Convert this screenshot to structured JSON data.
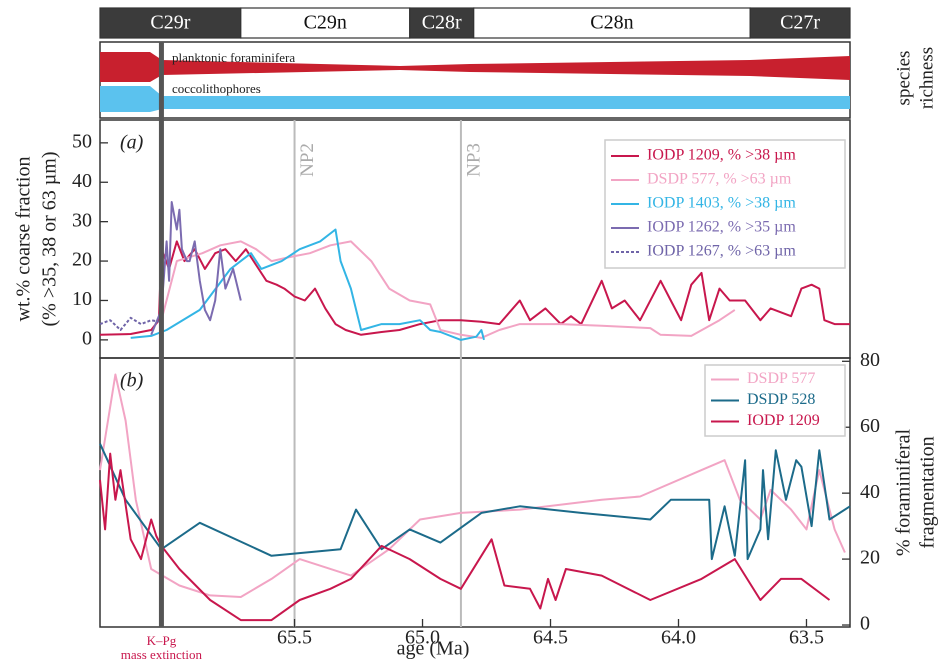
{
  "magnetochrons": [
    {
      "label": "C29r",
      "start": 66.26,
      "end": 65.71
    },
    {
      "label": "C29n",
      "start": 65.71,
      "end": 65.05
    },
    {
      "label": "C28r",
      "start": 65.05,
      "end": 64.8
    },
    {
      "label": "C28n",
      "start": 64.8,
      "end": 63.72
    },
    {
      "label": "C27r",
      "start": 63.72,
      "end": 63.33
    }
  ],
  "species_richness": {
    "label": [
      "species",
      "richness"
    ],
    "groups": [
      "planktonic foraminifera",
      "coccolithophores"
    ]
  },
  "chart_data": [
    {
      "type": "line",
      "panel_label": "(a)",
      "ylabel": [
        "wt.% coarse fraction",
        "(% >35, 38 or 63 µm)"
      ],
      "xlim": [
        66.26,
        63.33
      ],
      "ylim": [
        -4.6,
        55.8
      ],
      "yticks": [
        0,
        10,
        20,
        30,
        40,
        50
      ],
      "legend": "upper right",
      "annotations": [
        {
          "text": "NP2",
          "x": 65.5
        },
        {
          "text": "NP3",
          "x": 64.85
        }
      ],
      "series": [
        {
          "name": "IODP 1209, % >38 µm",
          "color": "#c8174d",
          "x": [
            66.26,
            66.14,
            66.06,
            66.03,
            66.02,
            65.99,
            65.96,
            65.93,
            65.89,
            65.85,
            65.81,
            65.77,
            65.73,
            65.69,
            65.65,
            65.61,
            65.57,
            65.54,
            65.5,
            65.46,
            65.42,
            65.38,
            65.34,
            65.3,
            65.24,
            65.16,
            65.09,
            65.01,
            64.93,
            64.85,
            64.77,
            64.7,
            64.62,
            64.58,
            64.52,
            64.46,
            64.42,
            64.38,
            64.3,
            64.26,
            64.21,
            64.15,
            64.07,
            64.03,
            63.99,
            63.95,
            63.91,
            63.88,
            63.84,
            63.8,
            63.74,
            63.68,
            63.64,
            63.56,
            63.52,
            63.48,
            63.45,
            63.43,
            63.39,
            63.33
          ],
          "values": [
            1.3,
            1.5,
            2.5,
            5,
            23,
            18,
            25,
            20,
            23,
            18,
            22,
            23,
            20,
            23,
            19,
            15,
            14,
            13,
            11,
            10,
            13,
            8,
            4,
            2.5,
            1.3,
            2,
            2.5,
            4,
            5,
            5,
            4.6,
            4,
            10,
            5,
            8,
            4,
            6,
            4,
            15,
            8,
            10,
            5,
            15,
            10,
            5,
            14,
            17,
            5,
            13,
            10,
            10,
            5,
            8,
            6,
            13,
            14,
            13,
            5,
            4,
            4
          ]
        },
        {
          "name": "DSDP 577, % >63 µm",
          "color": "#f2a4c4",
          "x": [
            66.02,
            65.96,
            65.86,
            65.79,
            65.71,
            65.65,
            65.59,
            65.52,
            65.44,
            65.36,
            65.28,
            65.2,
            65.13,
            65.05,
            64.97,
            64.93,
            64.85,
            64.77,
            64.7,
            64.62,
            64.46,
            64.3,
            64.11,
            64.07,
            63.95,
            63.84,
            63.78
          ],
          "values": [
            5,
            20,
            22,
            24,
            25,
            23,
            20,
            21,
            22,
            24,
            25,
            20,
            13,
            10,
            9,
            2.5,
            1.3,
            0.5,
            2.5,
            4,
            4,
            3.6,
            3,
            1.3,
            1,
            5,
            7.6
          ]
        },
        {
          "name": "IODP 1403, % >38 µm",
          "color": "#33b5e5",
          "x": [
            66.14,
            66.06,
            66.0,
            65.87,
            65.75,
            65.67,
            65.63,
            65.55,
            65.48,
            65.4,
            65.34,
            65.32,
            65.28,
            65.24,
            65.16,
            65.09,
            65.01,
            64.97,
            64.93,
            64.85,
            64.79,
            64.77,
            64.76
          ],
          "values": [
            0.5,
            1,
            2.5,
            7.6,
            18,
            22,
            18,
            20,
            23,
            25,
            28,
            20,
            13,
            2.5,
            4,
            4,
            5,
            2.5,
            2,
            0,
            0.8,
            2.5,
            0
          ]
        },
        {
          "name": "IODP 1262, % >35 µm",
          "color": "#7b6bb0",
          "x": [
            66.06,
            66.02,
            66.0,
            65.99,
            65.98,
            65.96,
            65.95,
            65.94,
            65.92,
            65.91,
            65.89,
            65.87,
            65.85,
            65.83,
            65.81,
            65.79,
            65.77,
            65.74,
            65.71
          ],
          "values": [
            1.3,
            7.6,
            25,
            15,
            35,
            28,
            33,
            23,
            20,
            20,
            25,
            15,
            7.6,
            5,
            10,
            23,
            13,
            18,
            10
          ]
        },
        {
          "name": "IODP 1267, % >63 µm",
          "color": "#6f64a8",
          "style": "dashed",
          "x": [
            66.26,
            66.22,
            66.18,
            66.14,
            66.1,
            66.06,
            66.03
          ],
          "values": [
            4,
            5,
            2.5,
            5.6,
            4,
            5,
            4.6
          ]
        }
      ]
    },
    {
      "type": "line",
      "panel_label": "(b)",
      "xlabel": "age (Ma)",
      "y2label": [
        "% foraminiferal",
        "fragmentation"
      ],
      "xlim": [
        66.26,
        63.33
      ],
      "xticks": [
        65.5,
        {
          "value": 65,
          "label": "65.0"
        },
        64.5,
        {
          "value": 64,
          "label": "64.0"
        },
        63.5
      ],
      "y2lim": [
        -0.6,
        81
      ],
      "y2ticks": [
        0,
        20,
        40,
        60,
        80
      ],
      "legend": "upper right",
      "annotations": [
        {
          "text": [
            "K–Pg",
            "mass extinction"
          ],
          "x": 66.02
        }
      ],
      "series": [
        {
          "name": "DSDP 577",
          "color": "#f2a4c4",
          "axis": "y2",
          "x": [
            66.26,
            66.2,
            66.16,
            66.12,
            66.06,
            65.95,
            65.83,
            65.71,
            65.59,
            65.48,
            65.28,
            65.13,
            65.01,
            64.85,
            64.62,
            64.3,
            64.15,
            63.91,
            63.82,
            63.76,
            63.68,
            63.64,
            63.56,
            63.5,
            63.45,
            63.39,
            63.35
          ],
          "values": [
            47,
            76,
            62,
            38,
            17,
            12,
            9,
            8.5,
            14,
            20,
            15,
            23,
            32,
            34,
            35,
            38,
            39,
            47,
            50,
            38,
            32,
            41,
            35,
            29,
            47,
            29,
            22
          ]
        },
        {
          "name": "DSDP 528",
          "color": "#1c6b8a",
          "axis": "y2",
          "x": [
            66.26,
            66.16,
            66.02,
            65.87,
            65.59,
            65.32,
            65.26,
            65.16,
            65.05,
            64.93,
            64.77,
            64.62,
            64.38,
            64.11,
            64.03,
            63.88,
            63.87,
            63.82,
            63.78,
            63.74,
            63.73,
            63.68,
            63.67,
            63.65,
            63.62,
            63.58,
            63.54,
            63.52,
            63.48,
            63.45,
            63.41,
            63.33
          ],
          "values": [
            55,
            38,
            23,
            31,
            21,
            23,
            35,
            23,
            29,
            25,
            34,
            36,
            34,
            32,
            38,
            38,
            20,
            36,
            21,
            50,
            20,
            29,
            47,
            26,
            53,
            38,
            50,
            48,
            30,
            53,
            32,
            36
          ]
        },
        {
          "name": "IODP 1209",
          "color": "#c8174d",
          "axis": "y2",
          "x": [
            66.26,
            66.24,
            66.22,
            66.2,
            66.18,
            66.14,
            66.1,
            66.06,
            66.04,
            66.02,
            65.95,
            65.83,
            65.71,
            65.59,
            65.48,
            65.36,
            65.28,
            65.16,
            65.05,
            64.93,
            64.85,
            64.73,
            64.68,
            64.58,
            64.54,
            64.51,
            64.48,
            64.44,
            64.3,
            64.11,
            63.91,
            63.78,
            63.68,
            63.6,
            63.52,
            63.41
          ],
          "values": [
            44,
            29,
            52,
            38,
            47,
            26,
            20,
            32,
            27,
            24,
            17,
            7.6,
            1.5,
            1.5,
            7.6,
            11,
            14,
            24,
            20,
            14,
            11,
            26,
            12,
            11,
            5,
            14,
            7.6,
            17,
            15,
            7.6,
            14,
            20,
            7.6,
            14,
            14,
            7.6
          ]
        }
      ]
    }
  ]
}
